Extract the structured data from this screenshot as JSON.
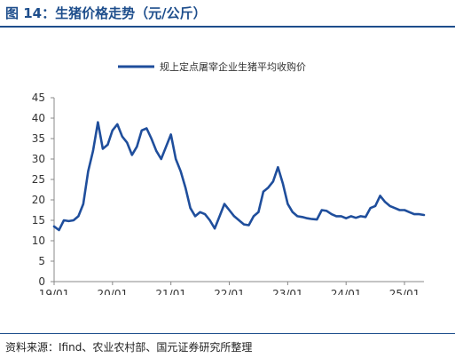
{
  "header": {
    "title": "图 14：生猪价格走势（元/公斤）"
  },
  "footer": {
    "source": "资料来源：Ifind、农业农村部、国元证券研究所整理"
  },
  "chart_data": {
    "type": "line",
    "title": "图 14：生猪价格走势（元/公斤）",
    "xlabel": "",
    "ylabel": "",
    "x_ticks": [
      "19/01",
      "20/01",
      "21/01",
      "22/01",
      "23/01",
      "24/01",
      "25/01"
    ],
    "y_ticks": [
      0,
      5,
      10,
      15,
      20,
      25,
      30,
      35,
      40,
      45
    ],
    "ylim": [
      0,
      45
    ],
    "xlim": [
      "2019-01",
      "2025-05"
    ],
    "grid": false,
    "legend_position": "top-center",
    "series": [
      {
        "name": "规上定点屠宰企业生猪平均收购价",
        "color": "#1f4e9c",
        "x": [
          "2019-01",
          "2019-02",
          "2019-03",
          "2019-04",
          "2019-05",
          "2019-06",
          "2019-07",
          "2019-08",
          "2019-09",
          "2019-10",
          "2019-11",
          "2019-12",
          "2020-01",
          "2020-02",
          "2020-03",
          "2020-04",
          "2020-05",
          "2020-06",
          "2020-07",
          "2020-08",
          "2020-09",
          "2020-10",
          "2020-11",
          "2020-12",
          "2021-01",
          "2021-02",
          "2021-03",
          "2021-04",
          "2021-05",
          "2021-06",
          "2021-07",
          "2021-08",
          "2021-09",
          "2021-10",
          "2021-11",
          "2021-12",
          "2022-01",
          "2022-02",
          "2022-03",
          "2022-04",
          "2022-05",
          "2022-06",
          "2022-07",
          "2022-08",
          "2022-09",
          "2022-10",
          "2022-11",
          "2022-12",
          "2023-01",
          "2023-02",
          "2023-03",
          "2023-04",
          "2023-05",
          "2023-06",
          "2023-07",
          "2023-08",
          "2023-09",
          "2023-10",
          "2023-11",
          "2023-12",
          "2024-01",
          "2024-02",
          "2024-03",
          "2024-04",
          "2024-05",
          "2024-06",
          "2024-07",
          "2024-08",
          "2024-09",
          "2024-10",
          "2024-11",
          "2024-12",
          "2025-01",
          "2025-02",
          "2025-03",
          "2025-04",
          "2025-05"
        ],
        "values": [
          13.5,
          12.6,
          15,
          14.8,
          15,
          16,
          19,
          27,
          32,
          39,
          32.5,
          33.5,
          37,
          38.5,
          35.5,
          34,
          31,
          33,
          37,
          37.5,
          35,
          32,
          30,
          33,
          36,
          30,
          27,
          23,
          18,
          16,
          17,
          16.5,
          15,
          13,
          16,
          19,
          17.5,
          16,
          15,
          14,
          13.8,
          16,
          17,
          22,
          23,
          24.5,
          28,
          24,
          19,
          17,
          16,
          15.8,
          15.5,
          15.3,
          15.2,
          17.5,
          17.3,
          16.5,
          16,
          16,
          15.5,
          16,
          15.6,
          16,
          15.8,
          18,
          18.5,
          21,
          19.5,
          18.5,
          18,
          17.5,
          17.5,
          17,
          16.5,
          16.5,
          16.3
        ]
      }
    ]
  }
}
